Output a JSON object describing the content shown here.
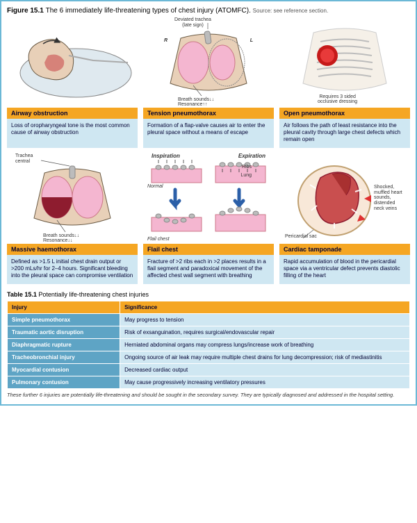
{
  "figure": {
    "number": "Figure 15.1",
    "caption": "The 6 immediately life-threatening types of chest injury (ATOMFC).",
    "source": "Source: see reference section.",
    "colors": {
      "border": "#6bb8d6",
      "title_bar": "#f5a623",
      "desc_bg": "#cfe7f2",
      "skin": "#e8d0b8",
      "lung_pink": "#f4b6d0",
      "lung_dark": "#8e1c2f",
      "heart": "#c94f4f",
      "rib": "#bcbcbc",
      "arrow_blue": "#2b5fa8",
      "wound_red": "#c61a1a"
    }
  },
  "cards": [
    {
      "id": "airway",
      "title": "Airway obstruction",
      "desc": "Loss of oropharyngeal tone is the most common cause of airway obstruction",
      "labels": {}
    },
    {
      "id": "tension",
      "title": "Tension pneumothorax",
      "desc": "Formation of a flap-valve causes air to enter the pleural space without a means of escape",
      "labels": {
        "top": "Deviated trachea\n(late sign)",
        "r": "R",
        "l": "L",
        "bottom": "Breath sounds↓↓\nResonance↑↑"
      }
    },
    {
      "id": "open",
      "title": "Open pneumothorax",
      "desc": "Air follows the path of least resistance into the pleural cavity through large chest defects which remain open",
      "labels": {
        "bottom": "Requires 3 sided\nocclusive dressing"
      }
    },
    {
      "id": "massive",
      "title": "Massive haemothorax",
      "desc": "Defined as >1.5 L initial chest drain output or >200 mLs/hr for 2–4 hours. Significant bleeding into the pleural space can compromise ventilation",
      "labels": {
        "top": "Trachea\ncentral",
        "bottom": "Breath sounds↓↓\nResonance↓↓"
      }
    },
    {
      "id": "flail",
      "title": "Flail chest",
      "desc": "Fracture of >2 ribs each in >2 places results in a flail segment and paradoxical movement of the affected chest wall segment with breathing",
      "labels": {
        "insp": "Inspiration",
        "exp": "Expiration",
        "ribs": "Ribs",
        "lung": "Lung",
        "normal": "Normal",
        "flail": "Flail chest"
      }
    },
    {
      "id": "tamponade",
      "title": "Cardiac tamponade",
      "desc": "Rapid accumulation of blood in the pericardial space via a ventricular defect prevents diastolic filling of the heart",
      "labels": {
        "sac": "Pericardial sac",
        "side": "Shocked,\nmuffled heart\nsounds,\ndistended\nneck veins"
      }
    }
  ],
  "table": {
    "number": "Table 15.1",
    "caption": "Potentially life-threatening chest injuries",
    "columns": [
      "Injury",
      "Significance"
    ],
    "rows": [
      [
        "Simple pneumothorax",
        "May progress to tension"
      ],
      [
        "Traumatic aortic disruption",
        "Risk of exsanguination, requires surgical/endovascular repair"
      ],
      [
        "Diaphragmatic rupture",
        "Herniated abdominal organs may compress lungs/increase work of breathing"
      ],
      [
        "Tracheobronchial injury",
        "Ongoing source of air leak may require multiple chest drains for lung decompression; risk of mediastinitis"
      ],
      [
        "Myocardial contusion",
        "Decreased cardiac output"
      ],
      [
        "Pulmonary contusion",
        "May cause progressively increasing ventilatory pressures"
      ]
    ],
    "footer": "These further 6 injuries are potentially life-threatening and should be sought in the secondary survey. They are typically diagnosed and addressed in the hospital setting."
  }
}
